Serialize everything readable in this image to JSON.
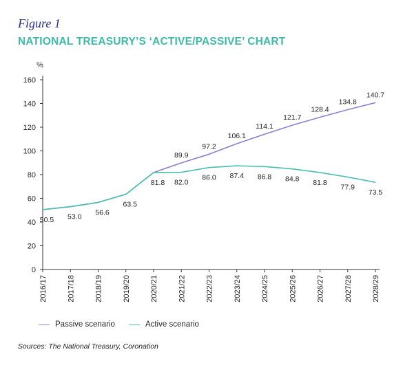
{
  "figure_label": "Figure 1",
  "title": "NATIONAL TREASURY’S ‘ACTIVE/PASSIVE’ CHART",
  "source": "Sources: The National Treasury, Coronation",
  "colors": {
    "passive": "#8a7fd0",
    "active": "#48bfb0",
    "title": "#3dbba8",
    "figure": "#2b2f8f"
  },
  "chart_data": {
    "type": "line",
    "ylabel": "%",
    "ylim": [
      0,
      160
    ],
    "yticks": [
      0,
      20,
      40,
      60,
      80,
      100,
      120,
      140,
      160
    ],
    "categories": [
      "2016/17",
      "2017/18",
      "2018/19",
      "2019/20",
      "2020/21",
      "2021/22",
      "2022/23",
      "2023/24",
      "2024/25",
      "2025/26",
      "2026/27",
      "2027/28",
      "2028/29"
    ],
    "grid": false,
    "legend_position": "bottom-left",
    "series": [
      {
        "name": "Passive scenario",
        "values": [
          50.5,
          53.0,
          56.6,
          63.5,
          81.8,
          89.9,
          97.2,
          106.1,
          114.1,
          121.7,
          128.4,
          134.8,
          140.7
        ]
      },
      {
        "name": "Active scenario",
        "values": [
          50.5,
          53.0,
          56.6,
          63.5,
          81.8,
          82.0,
          86.0,
          87.4,
          86.8,
          84.8,
          81.8,
          77.9,
          73.5
        ]
      }
    ]
  }
}
